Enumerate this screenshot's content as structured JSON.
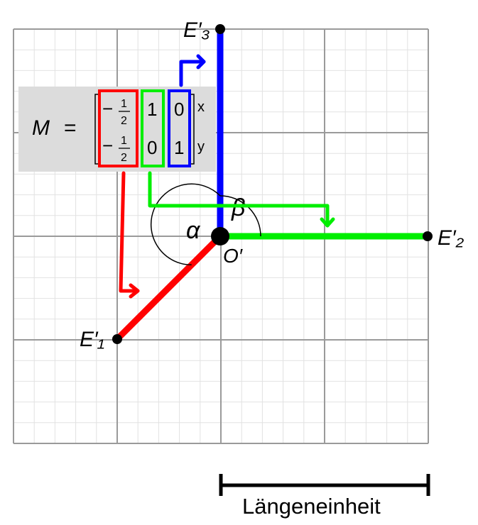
{
  "points": {
    "e1": "E′₁",
    "e2": "E′₂",
    "e3": "E′₃",
    "origin": "O′"
  },
  "angles": {
    "alpha": "α",
    "beta": "β"
  },
  "matrix": {
    "name": "M",
    "equals": "=",
    "col1": [
      "−½",
      "−½"
    ],
    "col2": [
      "1",
      "0"
    ],
    "col3": [
      "0",
      "1"
    ],
    "row_labels": [
      "x",
      "y"
    ]
  },
  "scale_bar": {
    "label": "Längeneinheit"
  },
  "colors": {
    "e1_axis": "#ff0000",
    "e2_axis": "#00ee00",
    "e3_axis": "#0000ff",
    "grid_major": "#999999",
    "grid_minor": "#e0e0e0",
    "matrix_bg": "#dcdcdc"
  }
}
